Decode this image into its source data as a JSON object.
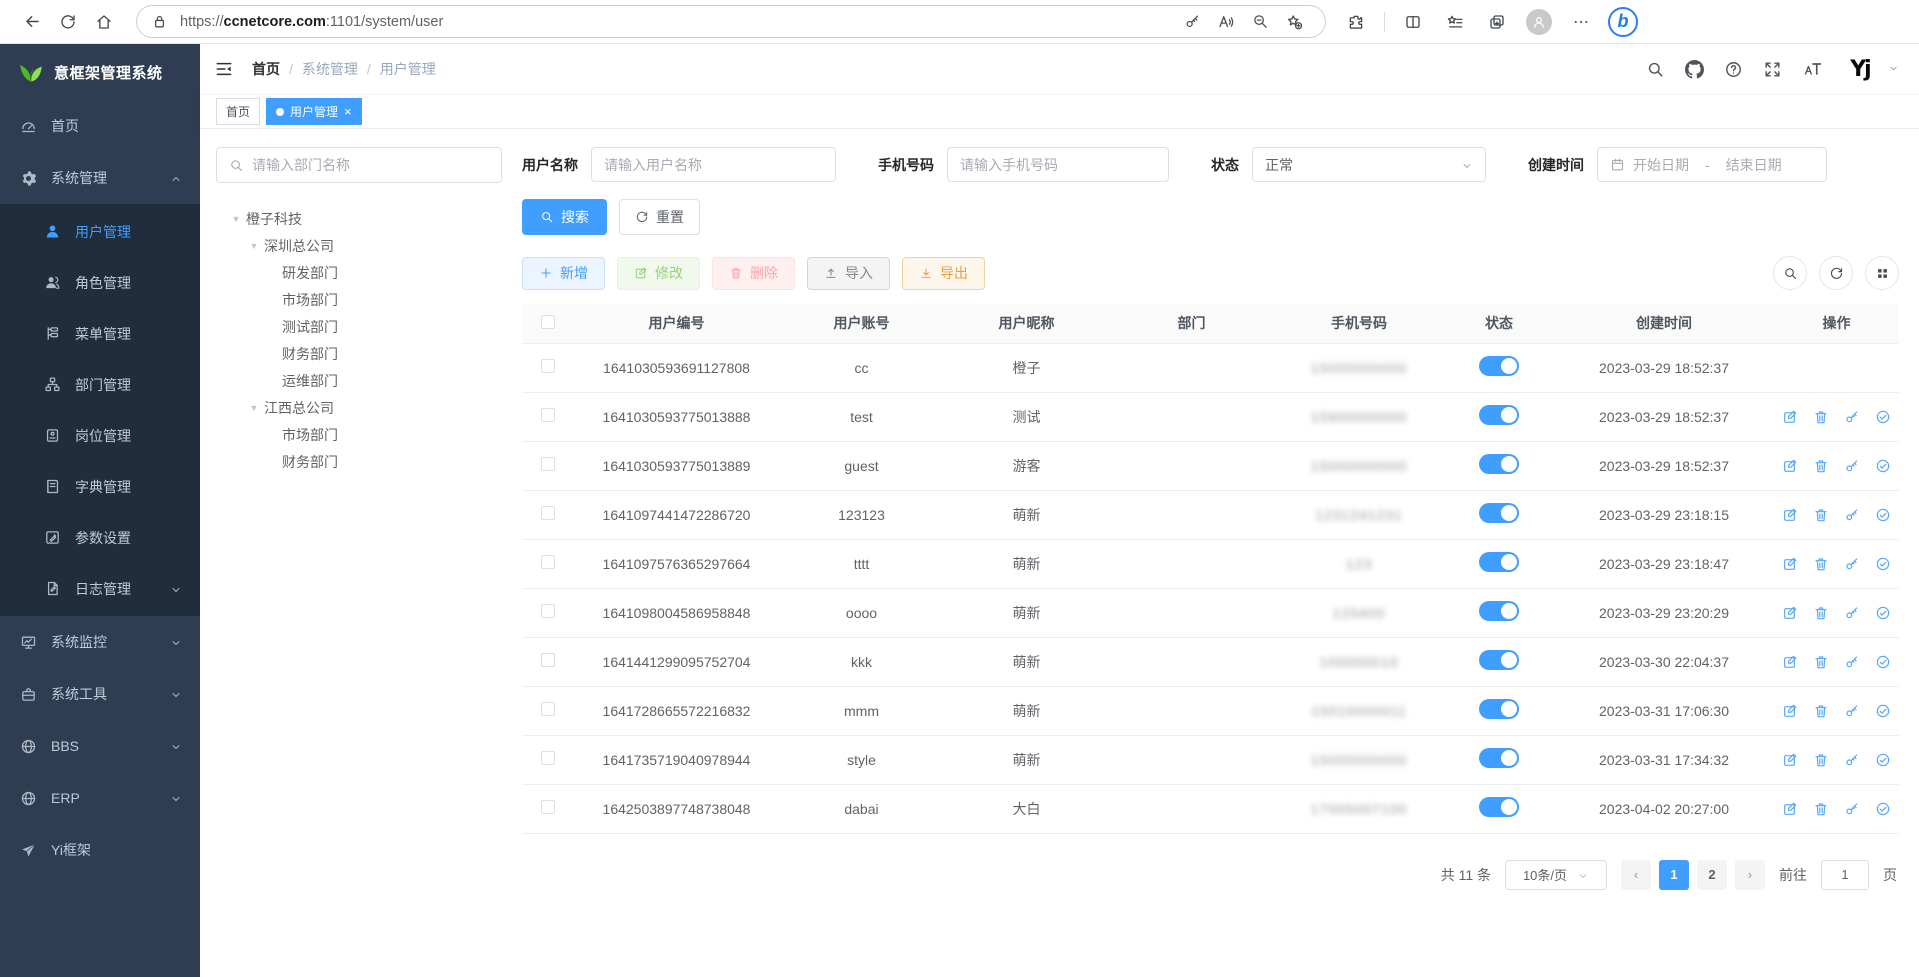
{
  "colors": {
    "accent": "#409eff",
    "sidebar_bg": "#2f3d53",
    "submenu_bg": "#1f2d3d",
    "toggle_on": "#409eff",
    "tag_active": "#409eff",
    "logo_green": "#67c23a"
  },
  "browser": {
    "url_protocol": "https://",
    "url_domain": "ccnetcore.com",
    "url_path": ":1101/system/user"
  },
  "sidebar": {
    "title": "意框架管理系统",
    "items": [
      {
        "key": "home",
        "icon": "gauge",
        "label": "首页"
      },
      {
        "key": "system",
        "icon": "gear",
        "label": "系统管理",
        "arrow": "up",
        "children": [
          {
            "key": "user",
            "icon": "user",
            "label": "用户管理",
            "active": true
          },
          {
            "key": "role",
            "icon": "users",
            "label": "角色管理"
          },
          {
            "key": "menu",
            "icon": "menutree",
            "label": "菜单管理"
          },
          {
            "key": "dept",
            "icon": "org",
            "label": "部门管理"
          },
          {
            "key": "post",
            "icon": "post",
            "label": "岗位管理"
          },
          {
            "key": "dict",
            "icon": "dict",
            "label": "字典管理"
          },
          {
            "key": "param",
            "icon": "param",
            "label": "参数设置"
          },
          {
            "key": "log",
            "icon": "log",
            "label": "日志管理",
            "arrow": "down"
          }
        ]
      },
      {
        "key": "monitor",
        "icon": "monitor",
        "label": "系统监控",
        "arrow": "down"
      },
      {
        "key": "tool",
        "icon": "tool",
        "label": "系统工具",
        "arrow": "down"
      },
      {
        "key": "bbs",
        "icon": "globe",
        "label": "BBS",
        "arrow": "down"
      },
      {
        "key": "erp",
        "icon": "globe",
        "label": "ERP",
        "arrow": "down"
      },
      {
        "key": "yi",
        "icon": "plane",
        "label": "Yi框架"
      }
    ]
  },
  "topbar": {
    "breadcrumb": [
      "首页",
      "系统管理",
      "用户管理"
    ],
    "avatar_text": "Yj"
  },
  "tabs": [
    {
      "label": "首页",
      "active": false,
      "closable": false
    },
    {
      "label": "用户管理",
      "active": true,
      "closable": true
    }
  ],
  "tree": {
    "search_placeholder": "请输入部门名称",
    "nodes": [
      {
        "label": "橙子科技",
        "level": 0,
        "caret": true
      },
      {
        "label": "深圳总公司",
        "level": 1,
        "caret": true
      },
      {
        "label": "研发部门",
        "level": 2,
        "caret": false
      },
      {
        "label": "市场部门",
        "level": 2,
        "caret": false
      },
      {
        "label": "测试部门",
        "level": 2,
        "caret": false
      },
      {
        "label": "财务部门",
        "level": 2,
        "caret": false
      },
      {
        "label": "运维部门",
        "level": 2,
        "caret": false
      },
      {
        "label": "江西总公司",
        "level": 1,
        "caret": true
      },
      {
        "label": "市场部门",
        "level": 2,
        "caret": false
      },
      {
        "label": "财务部门",
        "level": 2,
        "caret": false
      }
    ]
  },
  "filters": {
    "user_name": {
      "label": "用户名称",
      "placeholder": "请输入用户名称"
    },
    "phone": {
      "label": "手机号码",
      "placeholder": "请输入手机号码"
    },
    "status": {
      "label": "状态",
      "value": "正常"
    },
    "created": {
      "label": "创建时间",
      "start": "开始日期",
      "separator": "-",
      "end": "结束日期"
    }
  },
  "toolbar": {
    "search": "搜索",
    "reset": "重置",
    "add": "新增",
    "edit": "修改",
    "delete": "删除",
    "import": "导入",
    "export": "导出"
  },
  "table": {
    "headers": [
      "用户编号",
      "用户账号",
      "用户昵称",
      "部门",
      "手机号码",
      "状态",
      "创建时间",
      "操作"
    ],
    "rows": [
      {
        "id": "1641030593691127808",
        "account": "cc",
        "nickname": "橙子",
        "dept": "",
        "phone": "15000000000",
        "phone_masked": true,
        "status": true,
        "created": "2023-03-29 18:52:37",
        "ops": false
      },
      {
        "id": "1641030593775013888",
        "account": "test",
        "nickname": "测试",
        "dept": "",
        "phone": "15900000000",
        "phone_masked": true,
        "status": true,
        "created": "2023-03-29 18:52:37",
        "ops": true
      },
      {
        "id": "1641030593775013889",
        "account": "guest",
        "nickname": "游客",
        "dept": "",
        "phone": "15000000000",
        "phone_masked": true,
        "status": true,
        "created": "2023-03-29 18:52:37",
        "ops": true
      },
      {
        "id": "1641097441472286720",
        "account": "123123",
        "nickname": "萌新",
        "dept": "",
        "phone": "1231241231",
        "phone_masked": true,
        "status": true,
        "created": "2023-03-29 23:18:15",
        "ops": true
      },
      {
        "id": "1641097576365297664",
        "account": "tttt",
        "nickname": "萌新",
        "dept": "",
        "phone": "123",
        "phone_masked": true,
        "status": true,
        "created": "2023-03-29 23:18:47",
        "ops": true
      },
      {
        "id": "1641098004586958848",
        "account": "oooo",
        "nickname": "萌新",
        "dept": "",
        "phone": "120400",
        "phone_masked": true,
        "status": true,
        "created": "2023-03-29 23:20:29",
        "ops": true
      },
      {
        "id": "1641441299095752704",
        "account": "kkk",
        "nickname": "萌新",
        "dept": "",
        "phone": "100000010",
        "phone_masked": true,
        "status": true,
        "created": "2023-03-30 22:04:37",
        "ops": true
      },
      {
        "id": "1641728665572216832",
        "account": "mmm",
        "nickname": "萌新",
        "dept": "",
        "phone": "15010000011",
        "phone_masked": true,
        "status": true,
        "created": "2023-03-31 17:06:30",
        "ops": true
      },
      {
        "id": "1641735719040978944",
        "account": "style",
        "nickname": "萌新",
        "dept": "",
        "phone": "15000000000",
        "phone_masked": true,
        "status": true,
        "created": "2023-03-31 17:34:32",
        "ops": true
      },
      {
        "id": "1642503897748738048",
        "account": "dabai",
        "nickname": "大白",
        "dept": "",
        "phone": "17005007100",
        "phone_masked": true,
        "status": true,
        "created": "2023-04-02 20:27:00",
        "ops": true
      }
    ]
  },
  "pagination": {
    "total_text": "共 11 条",
    "page_size": "10条/页",
    "pages": [
      "1",
      "2"
    ],
    "current": "1",
    "goto_label": "前往",
    "goto_value": "1",
    "page_unit": "页"
  }
}
